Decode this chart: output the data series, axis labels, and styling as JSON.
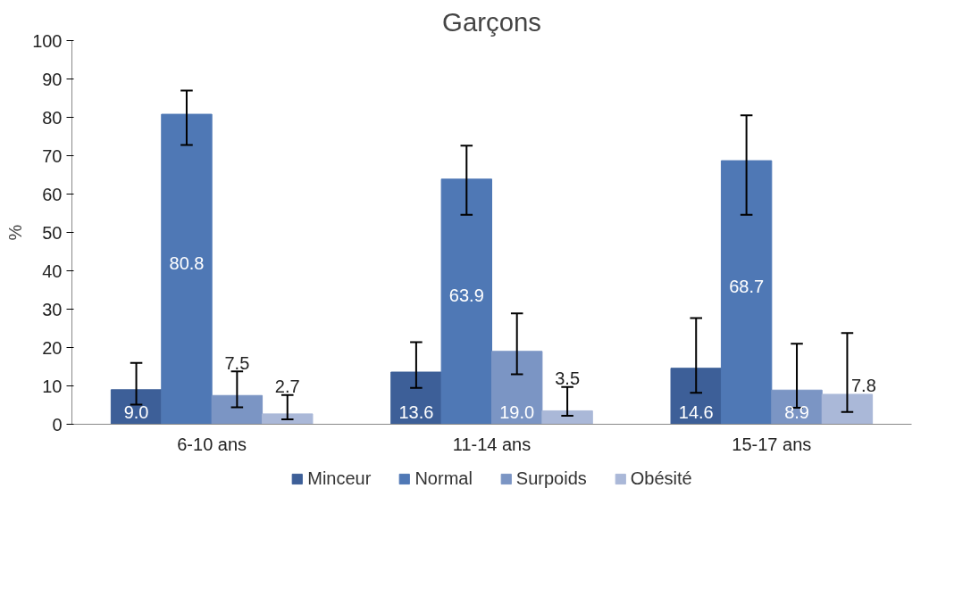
{
  "chart_data": {
    "type": "bar",
    "title": "Garçons",
    "ylabel": "%",
    "categories": [
      "6-10 ans",
      "11-14 ans",
      "15-17 ans"
    ],
    "series": [
      {
        "name": "Minceur",
        "color": "#3d5f98",
        "values": [
          9.0,
          13.6,
          14.6
        ],
        "value_labels": [
          "9.0",
          "13.6",
          "14.6"
        ],
        "errors": [
          [
            5.1,
            16.0
          ],
          [
            9.5,
            21.4
          ],
          [
            8.2,
            27.7
          ]
        ]
      },
      {
        "name": "Normal",
        "color": "#4f78b5",
        "values": [
          80.8,
          63.9,
          68.7
        ],
        "value_labels": [
          "80.8",
          "63.9",
          "68.7"
        ],
        "errors": [
          [
            72.8,
            87.0
          ],
          [
            54.6,
            72.6
          ],
          [
            54.6,
            80.5
          ]
        ]
      },
      {
        "name": "Surpoids",
        "color": "#7b95c4",
        "values": [
          7.5,
          19.0,
          8.9
        ],
        "value_labels": [
          "7.5",
          "19.0",
          "8.9"
        ],
        "errors": [
          [
            4.4,
            13.8
          ],
          [
            13.0,
            28.9
          ],
          [
            4.3,
            21.0
          ]
        ]
      },
      {
        "name": "Obésité",
        "color": "#aab8d8",
        "values": [
          2.7,
          3.5,
          7.8
        ],
        "value_labels": [
          "2.7",
          "3.5",
          "7.8"
        ],
        "errors": [
          [
            1.3,
            7.6
          ],
          [
            2.2,
            9.7
          ],
          [
            3.2,
            23.8
          ]
        ]
      }
    ],
    "ylim": [
      0,
      100
    ],
    "yticks": [
      0,
      10,
      20,
      30,
      40,
      50,
      60,
      70,
      80,
      90,
      100
    ],
    "grid": false,
    "legend": "bottom"
  }
}
